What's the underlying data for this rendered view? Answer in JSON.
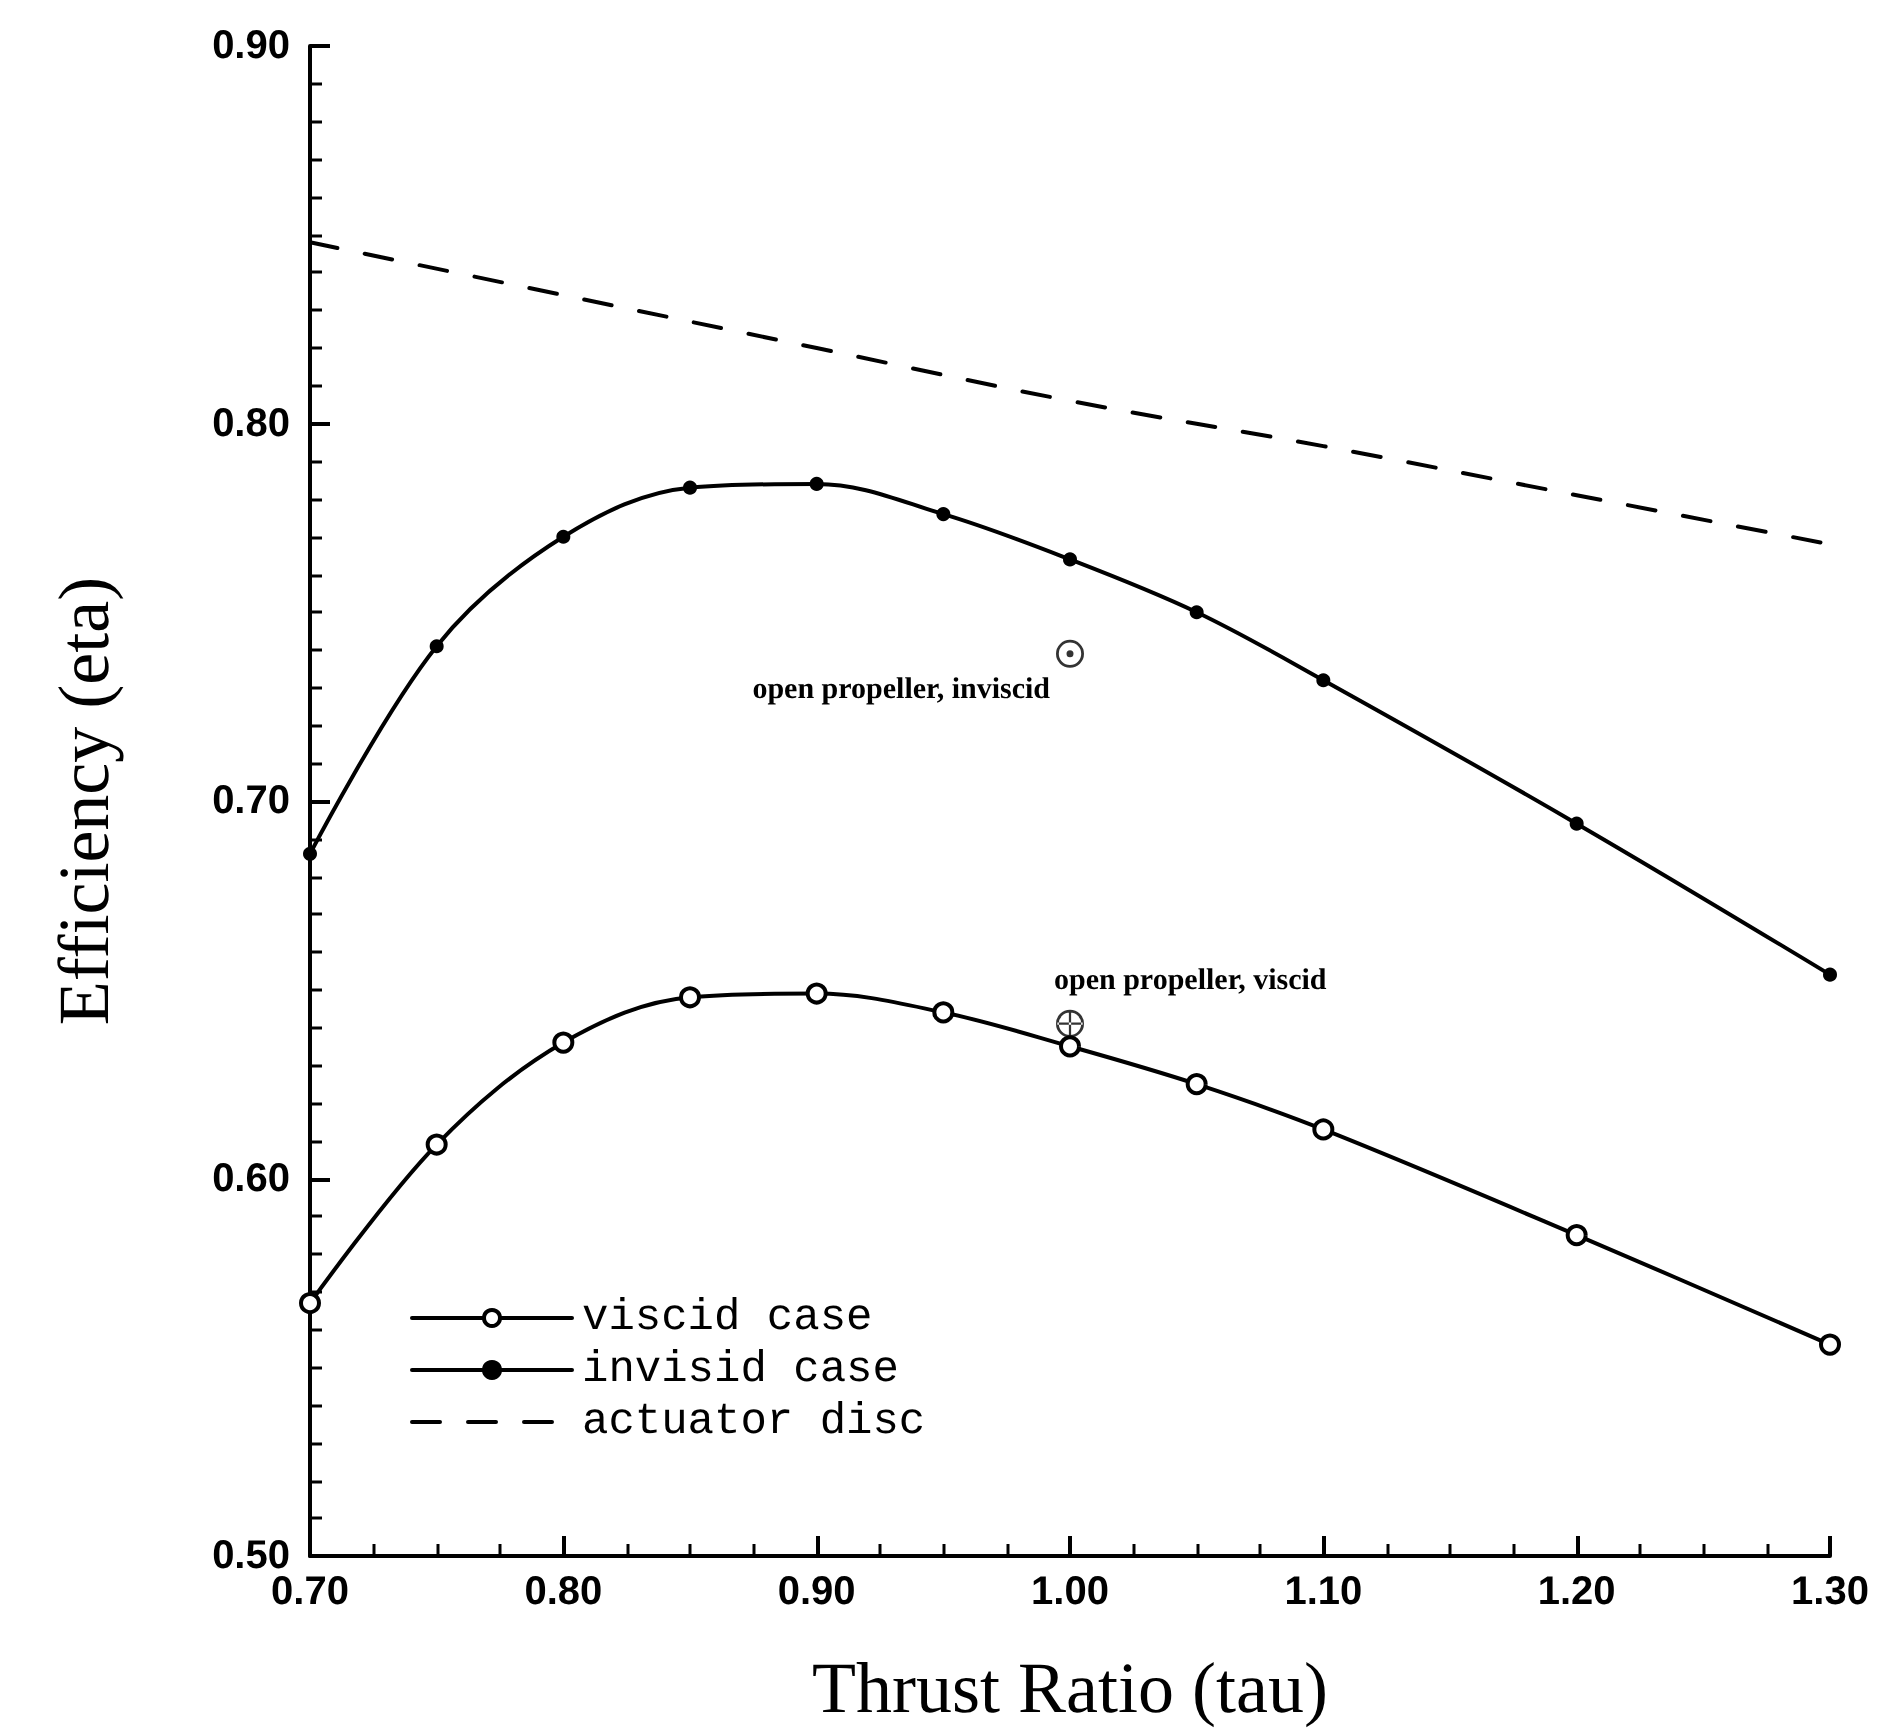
{
  "chart_data": {
    "type": "line",
    "xlabel": "Thrust Ratio (tau)",
    "ylabel": "Efficiency (eta)",
    "xlim": [
      0.7,
      1.3
    ],
    "ylim": [
      0.5,
      0.9
    ],
    "xticks": [
      {
        "value": 0.7,
        "label": "0.70"
      },
      {
        "value": 0.8,
        "label": "0.80"
      },
      {
        "value": 0.9,
        "label": "0.90"
      },
      {
        "value": 1.0,
        "label": "1.00"
      },
      {
        "value": 1.1,
        "label": "1.10"
      },
      {
        "value": 1.2,
        "label": "1.20"
      },
      {
        "value": 1.3,
        "label": "1.30"
      }
    ],
    "yticks": [
      {
        "value": 0.5,
        "label": "0.50"
      },
      {
        "value": 0.6,
        "label": "0.60"
      },
      {
        "value": 0.7,
        "label": "0.70"
      },
      {
        "value": 0.8,
        "label": "0.80"
      },
      {
        "value": 0.9,
        "label": "0.90"
      }
    ],
    "grid": false,
    "legend": "bottom left",
    "series": [
      {
        "name": "viscid case",
        "color": "#000000",
        "marker": "circle",
        "line_style": "solid",
        "x": [
          0.7,
          0.75,
          0.8,
          0.85,
          0.9,
          0.95,
          1.0,
          1.05,
          1.1,
          1.2,
          1.3
        ],
        "values": [
          0.567,
          0.609,
          0.636,
          0.648,
          0.649,
          0.644,
          0.635,
          0.625,
          0.613,
          0.585,
          0.556
        ]
      },
      {
        "name": "invisid case",
        "color": "#000000",
        "marker": "circle",
        "line_style": "solid",
        "x": [
          0.7,
          0.75,
          0.8,
          0.85,
          0.9,
          0.95,
          1.0,
          1.05,
          1.1,
          1.2,
          1.3
        ],
        "values": [
          0.686,
          0.741,
          0.77,
          0.783,
          0.784,
          0.776,
          0.764,
          0.75,
          0.732,
          0.694,
          0.654
        ]
      },
      {
        "name": "actuator disc",
        "color": "#000000",
        "marker": "none",
        "line_style": "dashed",
        "x": [
          0.7,
          0.8,
          0.9,
          1.0,
          1.1,
          1.2,
          1.3
        ],
        "values": [
          0.848,
          0.834,
          0.82,
          0.806,
          0.794,
          0.781,
          0.768
        ]
      },
      {
        "type": "scatter",
        "color": "#000000",
        "marker": "circle",
        "x": [
          1.0
        ],
        "values": [
          0.739
        ]
      },
      {
        "type": "scatter",
        "color": "#000000",
        "marker": "cross",
        "x": [
          1.0
        ],
        "values": [
          0.641
        ]
      }
    ],
    "annotations": [
      {
        "text": "open propeller, inviscid",
        "x": 1.0,
        "y": 0.739
      },
      {
        "text": "open propeller, viscid",
        "x": 1.0,
        "y": 0.641
      }
    ]
  }
}
